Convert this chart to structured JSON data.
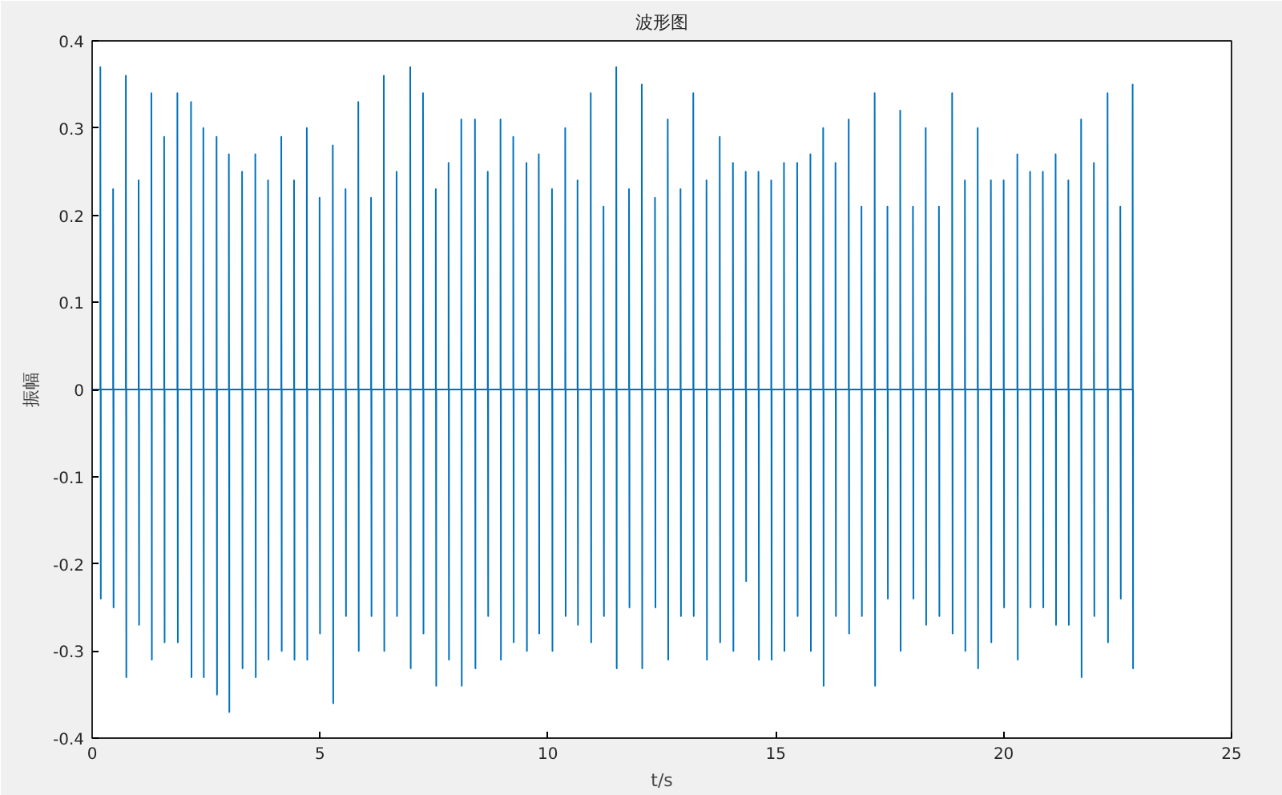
{
  "chart_data": {
    "type": "line",
    "title": "波形图",
    "xlabel": "t/s",
    "ylabel": "振幅",
    "xlim": [
      0,
      25
    ],
    "ylim": [
      -0.4,
      0.4
    ],
    "xticks": [
      0,
      5,
      10,
      15,
      20,
      25
    ],
    "yticks": [
      -0.4,
      -0.3,
      -0.2,
      -0.1,
      0,
      0.1,
      0.2,
      0.3,
      0.4
    ],
    "grid": false,
    "marker": "none",
    "line_style": "solid",
    "series": [
      {
        "color": "#0072bd",
        "x": [
          0,
          0.18,
          0.18,
          0.19,
          0.19,
          0.46,
          0.46,
          0.47,
          0.47,
          0.74,
          0.74,
          0.75,
          0.75,
          1.02,
          1.02,
          1.03,
          1.03,
          1.3,
          1.3,
          1.31,
          1.31,
          1.58,
          1.58,
          1.59,
          1.59,
          1.87,
          1.87,
          1.88,
          1.88,
          2.17,
          2.17,
          2.18,
          2.18,
          2.44,
          2.44,
          2.45,
          2.45,
          2.73,
          2.73,
          2.74,
          2.74,
          3.0,
          3.0,
          3.01,
          3.01,
          3.29,
          3.29,
          3.3,
          3.3,
          3.58,
          3.58,
          3.59,
          3.59,
          3.86,
          3.86,
          3.87,
          3.87,
          4.15,
          4.15,
          4.16,
          4.16,
          4.43,
          4.43,
          4.44,
          4.44,
          4.71,
          4.71,
          4.72,
          4.72,
          4.99,
          4.99,
          5.0,
          5.0,
          5.28,
          5.28,
          5.29,
          5.29,
          5.56,
          5.56,
          5.57,
          5.57,
          5.84,
          5.84,
          5.85,
          5.85,
          6.12,
          6.12,
          6.13,
          6.13,
          6.4,
          6.4,
          6.41,
          6.41,
          6.68,
          6.68,
          6.69,
          6.69,
          6.98,
          6.98,
          6.99,
          6.99,
          7.26,
          7.26,
          7.27,
          7.27,
          7.54,
          7.54,
          7.55,
          7.55,
          7.82,
          7.82,
          7.83,
          7.83,
          8.1,
          8.1,
          8.11,
          8.11,
          8.4,
          8.4,
          8.41,
          8.41,
          8.68,
          8.68,
          8.69,
          8.69,
          8.96,
          8.96,
          8.97,
          8.97,
          9.24,
          9.24,
          9.25,
          9.25,
          9.53,
          9.53,
          9.54,
          9.54,
          9.8,
          9.8,
          9.81,
          9.81,
          10.09,
          10.09,
          10.1,
          10.1,
          10.38,
          10.38,
          10.39,
          10.39,
          10.65,
          10.65,
          10.66,
          10.66,
          10.94,
          10.94,
          10.95,
          10.95,
          11.22,
          11.22,
          11.23,
          11.23,
          11.5,
          11.5,
          11.51,
          11.51,
          11.78,
          11.78,
          11.79,
          11.79,
          12.06,
          12.06,
          12.07,
          12.07,
          12.35,
          12.35,
          12.36,
          12.36,
          12.63,
          12.63,
          12.64,
          12.64,
          12.91,
          12.91,
          12.92,
          12.92,
          13.19,
          13.19,
          13.2,
          13.2,
          13.48,
          13.48,
          13.49,
          13.49,
          13.77,
          13.77,
          13.78,
          13.78,
          14.06,
          14.06,
          14.07,
          14.07,
          14.34,
          14.34,
          14.35,
          14.35,
          14.62,
          14.62,
          14.63,
          14.63,
          14.9,
          14.9,
          14.91,
          14.91,
          15.18,
          15.18,
          15.19,
          15.19,
          15.47,
          15.47,
          15.48,
          15.48,
          15.76,
          15.76,
          15.77,
          15.77,
          16.04,
          16.04,
          16.05,
          16.05,
          16.31,
          16.31,
          16.32,
          16.32,
          16.6,
          16.6,
          16.61,
          16.61,
          16.88,
          16.88,
          16.89,
          16.89,
          17.17,
          17.17,
          17.18,
          17.18,
          17.45,
          17.45,
          17.46,
          17.46,
          17.73,
          17.73,
          17.74,
          17.74,
          18.01,
          18.01,
          18.02,
          18.02,
          18.29,
          18.29,
          18.3,
          18.3,
          18.58,
          18.58,
          18.59,
          18.59,
          18.87,
          18.87,
          18.88,
          18.88,
          19.15,
          19.15,
          19.16,
          19.16,
          19.43,
          19.43,
          19.44,
          19.44,
          19.72,
          19.72,
          19.73,
          19.73,
          20.0,
          20.0,
          20.01,
          20.01,
          20.3,
          20.3,
          20.31,
          20.31,
          20.58,
          20.58,
          20.59,
          20.59,
          20.86,
          20.86,
          20.87,
          20.87,
          21.14,
          21.14,
          21.15,
          21.15,
          21.42,
          21.42,
          21.43,
          21.43,
          21.7,
          21.7,
          21.71,
          21.71,
          21.98,
          21.98,
          21.99,
          21.99,
          22.28,
          22.28,
          22.29,
          22.29,
          22.56,
          22.56,
          22.57,
          22.57,
          22.83,
          22.83,
          22.84,
          22.84
        ],
        "values": [
          0,
          0,
          0.37,
          -0.24,
          0,
          0,
          0.23,
          -0.25,
          0,
          0,
          0.36,
          -0.33,
          0,
          0,
          0.24,
          -0.27,
          0,
          0,
          0.34,
          -0.31,
          0,
          0,
          0.29,
          -0.29,
          0,
          0,
          0.34,
          -0.29,
          0,
          0,
          0.33,
          -0.33,
          0,
          0,
          0.3,
          -0.33,
          0,
          0,
          0.29,
          -0.35,
          0,
          0,
          0.27,
          -0.37,
          0,
          0,
          0.25,
          -0.32,
          0,
          0,
          0.27,
          -0.33,
          0,
          0,
          0.24,
          -0.31,
          0,
          0,
          0.29,
          -0.3,
          0,
          0,
          0.24,
          -0.31,
          0,
          0,
          0.3,
          -0.31,
          0,
          0,
          0.22,
          -0.28,
          0,
          0,
          0.28,
          -0.36,
          0,
          0,
          0.23,
          -0.26,
          0,
          0,
          0.33,
          -0.3,
          0,
          0,
          0.22,
          -0.26,
          0,
          0,
          0.36,
          -0.3,
          0,
          0,
          0.25,
          -0.26,
          0,
          0,
          0.37,
          -0.32,
          0,
          0,
          0.34,
          -0.28,
          0,
          0,
          0.23,
          -0.34,
          0,
          0,
          0.26,
          -0.31,
          0,
          0,
          0.31,
          -0.34,
          0,
          0,
          0.31,
          -0.32,
          0,
          0,
          0.25,
          -0.26,
          0,
          0,
          0.31,
          -0.31,
          0,
          0,
          0.29,
          -0.29,
          0,
          0,
          0.26,
          -0.3,
          0,
          0,
          0.27,
          -0.28,
          0,
          0,
          0.23,
          -0.3,
          0,
          0,
          0.3,
          -0.26,
          0,
          0,
          0.24,
          -0.27,
          0,
          0,
          0.34,
          -0.29,
          0,
          0,
          0.21,
          -0.26,
          0,
          0,
          0.37,
          -0.32,
          0,
          0,
          0.23,
          -0.25,
          0,
          0,
          0.35,
          -0.32,
          0,
          0,
          0.22,
          -0.25,
          0,
          0,
          0.31,
          -0.31,
          0,
          0,
          0.23,
          -0.26,
          0,
          0,
          0.34,
          -0.26,
          0,
          0,
          0.24,
          -0.31,
          0,
          0,
          0.29,
          -0.29,
          0,
          0,
          0.26,
          -0.3,
          0,
          0,
          0.25,
          -0.22,
          0,
          0,
          0.25,
          -0.31,
          0,
          0,
          0.24,
          -0.31,
          0,
          0,
          0.26,
          -0.3,
          0,
          0,
          0.26,
          -0.26,
          0,
          0,
          0.27,
          -0.3,
          0,
          0,
          0.3,
          -0.34,
          0,
          0,
          0.26,
          -0.26,
          0,
          0,
          0.31,
          -0.28,
          0,
          0,
          0.21,
          -0.26,
          0,
          0,
          0.34,
          -0.34,
          0,
          0,
          0.21,
          -0.24,
          0,
          0,
          0.32,
          -0.3,
          0,
          0,
          0.21,
          -0.24,
          0,
          0,
          0.3,
          -0.27,
          0,
          0,
          0.21,
          -0.26,
          0,
          0,
          0.34,
          -0.28,
          0,
          0,
          0.24,
          -0.3,
          0,
          0,
          0.3,
          -0.32,
          0,
          0,
          0.24,
          -0.29,
          0,
          0,
          0.24,
          -0.25,
          0,
          0,
          0.27,
          -0.31,
          0,
          0,
          0.25,
          -0.25,
          0,
          0,
          0.25,
          -0.25,
          0,
          0,
          0.27,
          -0.27,
          0,
          0,
          0.24,
          -0.27,
          0,
          0,
          0.31,
          -0.33,
          0,
          0,
          0.26,
          -0.26,
          0,
          0,
          0.34,
          -0.29,
          0,
          0,
          0.21,
          -0.24,
          0,
          0,
          0.35,
          -0.32,
          0
        ]
      }
    ]
  }
}
